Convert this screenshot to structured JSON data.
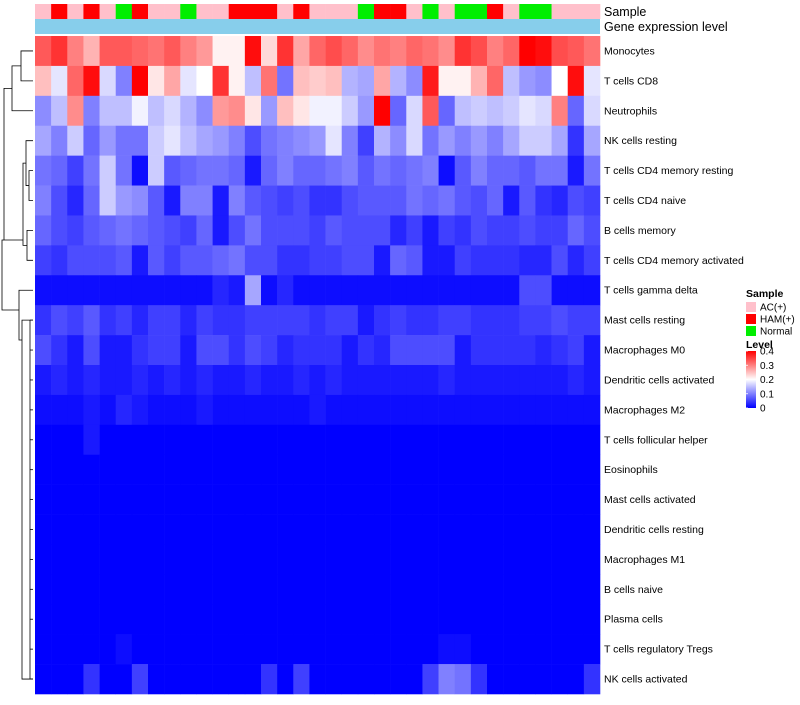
{
  "chart_data": {
    "type": "heatmap",
    "title": "",
    "annotation_rows": [
      "Sample",
      "Gene expression level"
    ],
    "rows": [
      "Monocytes",
      "T cells CD8",
      "Neutrophils",
      "NK cells resting",
      "T cells CD4 memory resting",
      "T cells CD4 naive",
      "B cells memory",
      "T cells CD4 memory activated",
      "T cells gamma delta",
      "Mast cells resting",
      "Macrophages M0",
      "Dendritic cells activated",
      "Macrophages M2",
      "T cells follicular helper",
      "Eosinophils",
      "Mast cells activated",
      "Dendritic cells resting",
      "Macrophages M1",
      "B cells naive",
      "Plasma cells",
      "T cells regulatory  Tregs",
      "NK cells activated"
    ],
    "n_columns": 35,
    "sample_groups": [
      "AC(+)",
      "HAM(+)",
      "AC(+)",
      "HAM(+)",
      "AC(+)",
      "Normal",
      "HAM(+)",
      "AC(+)",
      "AC(+)",
      "Normal",
      "AC(+)",
      "AC(+)",
      "HAM(+)",
      "HAM(+)",
      "HAM(+)",
      "AC(+)",
      "HAM(+)",
      "AC(+)",
      "AC(+)",
      "AC(+)",
      "Normal",
      "HAM(+)",
      "HAM(+)",
      "AC(+)",
      "Normal",
      "AC(+)",
      "Normal",
      "Normal",
      "HAM(+)",
      "AC(+)",
      "Normal",
      "Normal",
      "AC(+)",
      "AC(+)",
      "AC(+)"
    ],
    "values": [
      [
        0.33,
        0.36,
        0.3,
        0.26,
        0.33,
        0.33,
        0.32,
        0.31,
        0.33,
        0.3,
        0.28,
        0.21,
        0.21,
        0.39,
        0.23,
        0.36,
        0.27,
        0.32,
        0.34,
        0.32,
        0.29,
        0.31,
        0.3,
        0.32,
        0.31,
        0.29,
        0.36,
        0.34,
        0.3,
        0.32,
        0.4,
        0.39,
        0.34,
        0.33,
        0.31
      ],
      [
        0.25,
        0.18,
        0.32,
        0.39,
        0.17,
        0.1,
        0.4,
        0.22,
        0.27,
        0.18,
        0.2,
        0.36,
        0.21,
        0.15,
        0.31,
        0.09,
        0.25,
        0.24,
        0.25,
        0.14,
        0.13,
        0.27,
        0.14,
        0.11,
        0.38,
        0.21,
        0.21,
        0.26,
        0.32,
        0.15,
        0.12,
        0.11,
        0.2,
        0.39,
        0.18
      ],
      [
        0.11,
        0.15,
        0.29,
        0.1,
        0.15,
        0.15,
        0.19,
        0.15,
        0.17,
        0.14,
        0.11,
        0.28,
        0.29,
        0.22,
        0.12,
        0.25,
        0.22,
        0.19,
        0.19,
        0.16,
        0.12,
        0.4,
        0.08,
        0.17,
        0.33,
        0.08,
        0.15,
        0.16,
        0.15,
        0.16,
        0.18,
        0.17,
        0.3,
        0.08,
        0.17
      ],
      [
        0.13,
        0.1,
        0.16,
        0.08,
        0.12,
        0.09,
        0.09,
        0.16,
        0.18,
        0.15,
        0.13,
        0.12,
        0.1,
        0.06,
        0.09,
        0.1,
        0.11,
        0.12,
        0.18,
        0.1,
        0.05,
        0.14,
        0.11,
        0.17,
        0.09,
        0.12,
        0.1,
        0.12,
        0.1,
        0.13,
        0.16,
        0.16,
        0.13,
        0.04,
        0.13
      ],
      [
        0.09,
        0.08,
        0.05,
        0.09,
        0.16,
        0.09,
        0.01,
        0.16,
        0.07,
        0.08,
        0.09,
        0.09,
        0.08,
        0.02,
        0.08,
        0.1,
        0.08,
        0.08,
        0.09,
        0.1,
        0.07,
        0.09,
        0.08,
        0.09,
        0.1,
        0.01,
        0.07,
        0.1,
        0.08,
        0.08,
        0.07,
        0.09,
        0.09,
        0.02,
        0.09
      ],
      [
        0.1,
        0.06,
        0.03,
        0.08,
        0.16,
        0.12,
        0.11,
        0.07,
        0.02,
        0.1,
        0.1,
        0.02,
        0.1,
        0.07,
        0.06,
        0.05,
        0.06,
        0.04,
        0.04,
        0.06,
        0.07,
        0.07,
        0.07,
        0.09,
        0.08,
        0.09,
        0.07,
        0.06,
        0.08,
        0.02,
        0.07,
        0.04,
        0.03,
        0.06,
        0.05
      ],
      [
        0.08,
        0.06,
        0.05,
        0.07,
        0.08,
        0.09,
        0.08,
        0.07,
        0.06,
        0.05,
        0.08,
        0.02,
        0.06,
        0.09,
        0.06,
        0.06,
        0.06,
        0.05,
        0.07,
        0.06,
        0.06,
        0.06,
        0.03,
        0.05,
        0.02,
        0.05,
        0.04,
        0.06,
        0.05,
        0.05,
        0.06,
        0.05,
        0.05,
        0.08,
        0.06
      ],
      [
        0.05,
        0.04,
        0.06,
        0.06,
        0.06,
        0.07,
        0.02,
        0.07,
        0.05,
        0.07,
        0.07,
        0.08,
        0.09,
        0.06,
        0.06,
        0.04,
        0.04,
        0.05,
        0.05,
        0.06,
        0.06,
        0.02,
        0.08,
        0.07,
        0.02,
        0.02,
        0.05,
        0.04,
        0.04,
        0.04,
        0.03,
        0.03,
        0.06,
        0.03,
        0.05
      ],
      [
        0.01,
        0.01,
        0.01,
        0.01,
        0.01,
        0.01,
        0.01,
        0.01,
        0.01,
        0.01,
        0.01,
        0.03,
        0.02,
        0.13,
        0.01,
        0.03,
        0.01,
        0.01,
        0.01,
        0.01,
        0.01,
        0.01,
        0.01,
        0.01,
        0.01,
        0.01,
        0.01,
        0.01,
        0.01,
        0.01,
        0.06,
        0.06,
        0.01,
        0.01,
        0.01
      ],
      [
        0.04,
        0.06,
        0.05,
        0.07,
        0.04,
        0.05,
        0.03,
        0.05,
        0.05,
        0.03,
        0.05,
        0.04,
        0.04,
        0.05,
        0.05,
        0.05,
        0.05,
        0.04,
        0.05,
        0.05,
        0.02,
        0.04,
        0.05,
        0.04,
        0.04,
        0.05,
        0.05,
        0.04,
        0.04,
        0.04,
        0.05,
        0.05,
        0.06,
        0.05,
        0.05
      ],
      [
        0.06,
        0.04,
        0.02,
        0.06,
        0.02,
        0.02,
        0.04,
        0.05,
        0.05,
        0.02,
        0.06,
        0.06,
        0.04,
        0.06,
        0.05,
        0.03,
        0.04,
        0.04,
        0.04,
        0.02,
        0.04,
        0.03,
        0.06,
        0.06,
        0.06,
        0.06,
        0.02,
        0.04,
        0.04,
        0.04,
        0.04,
        0.03,
        0.04,
        0.05,
        0.02
      ],
      [
        0.02,
        0.03,
        0.02,
        0.03,
        0.02,
        0.02,
        0.03,
        0.02,
        0.03,
        0.02,
        0.03,
        0.02,
        0.02,
        0.03,
        0.02,
        0.02,
        0.03,
        0.02,
        0.03,
        0.02,
        0.02,
        0.02,
        0.02,
        0.02,
        0.02,
        0.03,
        0.02,
        0.02,
        0.02,
        0.02,
        0.02,
        0.02,
        0.02,
        0.03,
        0.02
      ],
      [
        0.01,
        0.01,
        0.01,
        0.02,
        0.01,
        0.03,
        0.02,
        0.01,
        0.01,
        0.01,
        0.02,
        0.01,
        0.01,
        0.01,
        0.01,
        0.01,
        0.01,
        0.02,
        0.01,
        0.01,
        0.01,
        0.01,
        0.01,
        0.01,
        0.01,
        0.01,
        0.01,
        0.01,
        0.01,
        0.01,
        0.01,
        0.01,
        0.01,
        0.01,
        0.01
      ],
      [
        0.0,
        0.0,
        0.0,
        0.02,
        0.0,
        0.0,
        0.0,
        0.0,
        0.0,
        0.0,
        0.0,
        0.0,
        0.0,
        0.0,
        0.0,
        0.0,
        0.0,
        0.0,
        0.0,
        0.0,
        0.0,
        0.0,
        0.0,
        0.0,
        0.0,
        0.0,
        0.0,
        0.0,
        0.0,
        0.0,
        0.0,
        0.0,
        0.0,
        0.0,
        0.0
      ],
      [
        0.0,
        0.0,
        0.0,
        0.0,
        0.0,
        0.0,
        0.0,
        0.0,
        0.0,
        0.0,
        0.0,
        0.0,
        0.0,
        0.0,
        0.0,
        0.0,
        0.0,
        0.0,
        0.0,
        0.0,
        0.0,
        0.0,
        0.0,
        0.0,
        0.0,
        0.0,
        0.0,
        0.0,
        0.0,
        0.0,
        0.0,
        0.0,
        0.0,
        0.0,
        0.0
      ],
      [
        0.0,
        0.0,
        0.0,
        0.0,
        0.0,
        0.0,
        0.0,
        0.0,
        0.0,
        0.0,
        0.0,
        0.0,
        0.0,
        0.0,
        0.0,
        0.0,
        0.0,
        0.0,
        0.0,
        0.0,
        0.0,
        0.0,
        0.0,
        0.0,
        0.0,
        0.0,
        0.0,
        0.0,
        0.0,
        0.0,
        0.0,
        0.0,
        0.0,
        0.0,
        0.0
      ],
      [
        0.0,
        0.0,
        0.0,
        0.0,
        0.0,
        0.0,
        0.0,
        0.0,
        0.0,
        0.0,
        0.0,
        0.0,
        0.0,
        0.0,
        0.0,
        0.0,
        0.0,
        0.0,
        0.0,
        0.0,
        0.0,
        0.0,
        0.0,
        0.0,
        0.0,
        0.0,
        0.0,
        0.0,
        0.0,
        0.0,
        0.0,
        0.0,
        0.0,
        0.0,
        0.0
      ],
      [
        0.0,
        0.0,
        0.0,
        0.0,
        0.0,
        0.0,
        0.0,
        0.0,
        0.0,
        0.0,
        0.0,
        0.0,
        0.0,
        0.0,
        0.0,
        0.0,
        0.0,
        0.0,
        0.0,
        0.0,
        0.0,
        0.0,
        0.0,
        0.0,
        0.0,
        0.0,
        0.0,
        0.0,
        0.0,
        0.0,
        0.0,
        0.0,
        0.0,
        0.0,
        0.0
      ],
      [
        0.0,
        0.0,
        0.0,
        0.0,
        0.0,
        0.0,
        0.0,
        0.0,
        0.0,
        0.0,
        0.0,
        0.0,
        0.0,
        0.0,
        0.0,
        0.0,
        0.0,
        0.0,
        0.0,
        0.0,
        0.0,
        0.0,
        0.0,
        0.0,
        0.0,
        0.0,
        0.0,
        0.0,
        0.0,
        0.0,
        0.0,
        0.0,
        0.0,
        0.0,
        0.0
      ],
      [
        0.0,
        0.0,
        0.0,
        0.0,
        0.0,
        0.0,
        0.0,
        0.0,
        0.0,
        0.0,
        0.0,
        0.0,
        0.0,
        0.0,
        0.0,
        0.0,
        0.0,
        0.0,
        0.0,
        0.0,
        0.0,
        0.0,
        0.0,
        0.0,
        0.0,
        0.0,
        0.0,
        0.0,
        0.0,
        0.0,
        0.0,
        0.0,
        0.0,
        0.0,
        0.0
      ],
      [
        0.0,
        0.0,
        0.0,
        0.0,
        0.0,
        0.01,
        0.0,
        0.0,
        0.0,
        0.0,
        0.0,
        0.0,
        0.0,
        0.0,
        0.0,
        0.0,
        0.0,
        0.0,
        0.0,
        0.0,
        0.0,
        0.0,
        0.0,
        0.0,
        0.0,
        0.01,
        0.01,
        0.0,
        0.0,
        0.0,
        0.0,
        0.0,
        0.0,
        0.0,
        0.0
      ],
      [
        0.0,
        0.0,
        0.0,
        0.04,
        0.0,
        0.0,
        0.05,
        0.0,
        0.0,
        0.0,
        0.0,
        0.0,
        0.0,
        0.0,
        0.04,
        0.0,
        0.05,
        0.0,
        0.0,
        0.0,
        0.0,
        0.0,
        0.0,
        0.0,
        0.05,
        0.1,
        0.09,
        0.04,
        0.0,
        0.0,
        0.0,
        0.0,
        0.0,
        0.0,
        0.04
      ]
    ],
    "legend_sample": {
      "title": "Sample",
      "entries": [
        {
          "label": "AC(+)",
          "color": "#FFC0CB"
        },
        {
          "label": "HAM(+)",
          "color": "#FF0000"
        },
        {
          "label": "Normal",
          "color": "#00EE00"
        }
      ]
    },
    "legend_level": {
      "title": "Level",
      "ticks": [
        "0.4",
        "0.3",
        "0.2",
        "0.1",
        "0"
      ],
      "tick_values": [
        0.4,
        0.3,
        0.2,
        0.1,
        0
      ],
      "range": [
        0,
        0.4
      ]
    },
    "expression_bar_color": "#87CEEB",
    "colormap": [
      "#0000FF",
      "#FFFFFF",
      "#FF0000"
    ]
  }
}
